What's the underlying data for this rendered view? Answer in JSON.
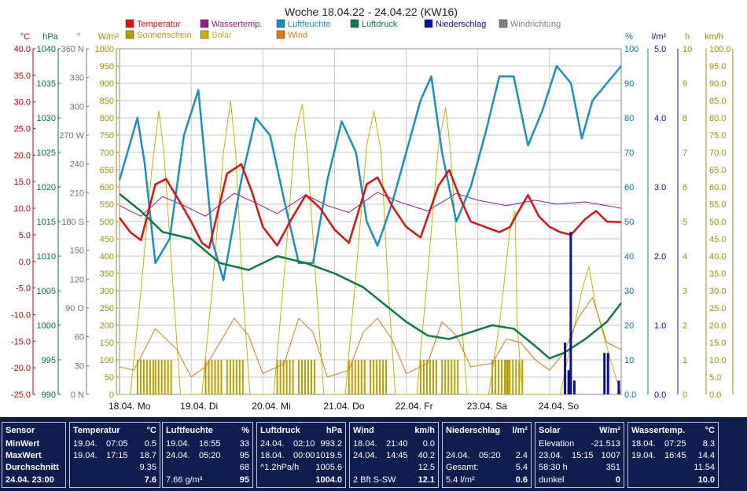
{
  "chart_data": {
    "type": "line",
    "title": "Woche 18.04.22 - 24.04.22 (KW16)",
    "x_labels": [
      "18.04. Mo",
      "19.04. Di",
      "20.04. Mi",
      "21.04. Do",
      "22.04. Fr",
      "23.04. Sa",
      "24.04. So"
    ],
    "legend": [
      {
        "name": "Temperatur",
        "color": "#dd1111"
      },
      {
        "name": "Wassertemp.",
        "color": "#9b1a8a"
      },
      {
        "name": "Luftfeuchte",
        "color": "#1a8fc1"
      },
      {
        "name": "Luftdruck",
        "color": "#0f7a45"
      },
      {
        "name": "Niederschlag",
        "color": "#0a10a0"
      },
      {
        "name": "Windrichtung",
        "color": "#808080"
      },
      {
        "name": "Sonnenschein",
        "color": "#b9a000"
      },
      {
        "name": "Solar",
        "color": "#c8b400"
      },
      {
        "name": "Wind",
        "color": "#dd7a10"
      }
    ],
    "axes": {
      "temp": {
        "unit": "°C",
        "ticks": [
          "40.0",
          "35.0",
          "30.0",
          "25.0",
          "20.0",
          "15.0",
          "10.0",
          "5.0",
          "0.0",
          "-5.0",
          "-10.0",
          "-15.0",
          "-20.0",
          "-25.0"
        ],
        "color": "#cc0000"
      },
      "pressure": {
        "unit": "hPa",
        "ticks": [
          "1040",
          "1035",
          "1030",
          "1025",
          "1020",
          "1015",
          "1010",
          "1005",
          "1000",
          "995",
          "990"
        ],
        "color": "#007050"
      },
      "direction": {
        "unit": "°",
        "ticks": [
          "360 N",
          "330",
          "300",
          "270 W",
          "240",
          "210",
          "180 S",
          "150",
          "120",
          "90 O",
          "60",
          "30",
          "0 N"
        ],
        "color": "#707070"
      },
      "solar": {
        "unit": "W/m²",
        "ticks": [
          "1000",
          "950",
          "900",
          "850",
          "800",
          "750",
          "700",
          "650",
          "600",
          "550",
          "500",
          "450",
          "400",
          "350",
          "300",
          "250",
          "200",
          "150",
          "100",
          "50",
          "0"
        ],
        "color": "#a09000"
      },
      "humidity": {
        "unit": "%",
        "ticks": [
          "100",
          "90",
          "80",
          "70",
          "60",
          "50",
          "40",
          "30",
          "20",
          "10",
          "0.0"
        ],
        "color": "#0070b0"
      },
      "rain": {
        "unit": "l/m²",
        "ticks": [
          "5.0",
          "4.0",
          "3.0",
          "2.0",
          "1.0",
          "0.0"
        ],
        "color": "#0a10a0"
      },
      "sunhours": {
        "unit": "h",
        "ticks": [
          "10",
          "9",
          "8",
          "7",
          "6",
          "5",
          "4",
          "3",
          "2",
          "1",
          "0"
        ],
        "color": "#a09000"
      },
      "wind": {
        "unit": "km/h",
        "ticks": [
          "100.0",
          "95.0",
          "90.0",
          "85.0",
          "80.0",
          "75.0",
          "70.0",
          "65.0",
          "60.0",
          "55.0",
          "50.0",
          "45.0",
          "40.0",
          "35.0",
          "30.0",
          "25.0",
          "20.0",
          "15.0",
          "10.0",
          "5.0",
          "0.0"
        ],
        "color": "#a09000"
      }
    },
    "temperature_C": [
      [
        0,
        8.2
      ],
      [
        0.15,
        5.5
      ],
      [
        0.3,
        4
      ],
      [
        0.5,
        14.5
      ],
      [
        0.65,
        15.5
      ],
      [
        0.85,
        11
      ],
      [
        1.0,
        7.5
      ],
      [
        1.15,
        3.5
      ],
      [
        1.25,
        2.5
      ],
      [
        1.5,
        16.5
      ],
      [
        1.7,
        18.3
      ],
      [
        1.85,
        13
      ],
      [
        2.0,
        6.5
      ],
      [
        2.2,
        3.0
      ],
      [
        2.4,
        8
      ],
      [
        2.6,
        12.5
      ],
      [
        2.8,
        10
      ],
      [
        3.0,
        6
      ],
      [
        3.2,
        3.5
      ],
      [
        3.45,
        14.5
      ],
      [
        3.6,
        15.8
      ],
      [
        3.8,
        10.5
      ],
      [
        4.0,
        6.5
      ],
      [
        4.2,
        4.5
      ],
      [
        4.45,
        14.2
      ],
      [
        4.6,
        17.2
      ],
      [
        4.75,
        12
      ],
      [
        4.9,
        7.5
      ],
      [
        5.1,
        6.5
      ],
      [
        5.3,
        5.5
      ],
      [
        5.45,
        6.5
      ],
      [
        5.55,
        9
      ],
      [
        5.7,
        12.5
      ],
      [
        5.85,
        8.5
      ],
      [
        6.0,
        6.5
      ],
      [
        6.15,
        5.5
      ],
      [
        6.3,
        5
      ],
      [
        6.5,
        8
      ],
      [
        6.65,
        9.5
      ],
      [
        6.8,
        7.5
      ],
      [
        7.0,
        7.4
      ]
    ],
    "water_temp_C": [
      [
        0,
        10.5
      ],
      [
        0.3,
        8.5
      ],
      [
        0.6,
        12.2
      ],
      [
        0.9,
        10.5
      ],
      [
        1.2,
        8.5
      ],
      [
        1.6,
        12.8
      ],
      [
        1.9,
        11
      ],
      [
        2.2,
        9
      ],
      [
        2.6,
        12.5
      ],
      [
        2.9,
        10.5
      ],
      [
        3.2,
        9.2
      ],
      [
        3.6,
        13
      ],
      [
        3.9,
        11.2
      ],
      [
        4.3,
        9.5
      ],
      [
        4.7,
        12.8
      ],
      [
        5.0,
        11.5
      ],
      [
        5.4,
        10.5
      ],
      [
        5.8,
        11.5
      ],
      [
        6.1,
        10.8
      ],
      [
        6.5,
        11.2
      ],
      [
        7.0,
        10.0
      ]
    ],
    "humidity_pct": [
      [
        0,
        62
      ],
      [
        0.25,
        80
      ],
      [
        0.35,
        67
      ],
      [
        0.5,
        38
      ],
      [
        0.7,
        45
      ],
      [
        0.9,
        75
      ],
      [
        1.1,
        88
      ],
      [
        1.3,
        44
      ],
      [
        1.45,
        33
      ],
      [
        1.7,
        62
      ],
      [
        1.9,
        80
      ],
      [
        2.1,
        75
      ],
      [
        2.3,
        56
      ],
      [
        2.5,
        38
      ],
      [
        2.7,
        38
      ],
      [
        2.9,
        62
      ],
      [
        3.1,
        79
      ],
      [
        3.3,
        70
      ],
      [
        3.45,
        50
      ],
      [
        3.6,
        43
      ],
      [
        3.8,
        55
      ],
      [
        4.0,
        70
      ],
      [
        4.2,
        85
      ],
      [
        4.35,
        92
      ],
      [
        4.5,
        70
      ],
      [
        4.7,
        50
      ],
      [
        4.9,
        60
      ],
      [
        5.1,
        75
      ],
      [
        5.3,
        92
      ],
      [
        5.5,
        92
      ],
      [
        5.7,
        72
      ],
      [
        5.9,
        82
      ],
      [
        6.1,
        95
      ],
      [
        6.3,
        90
      ],
      [
        6.45,
        74
      ],
      [
        6.6,
        85
      ],
      [
        6.8,
        90
      ],
      [
        7.0,
        95
      ]
    ],
    "pressure_hPa": [
      [
        0,
        1019
      ],
      [
        0.3,
        1016.5
      ],
      [
        0.6,
        1013.5
      ],
      [
        1.0,
        1012.5
      ],
      [
        1.4,
        1009
      ],
      [
        1.8,
        1008
      ],
      [
        2.2,
        1010
      ],
      [
        2.6,
        1009
      ],
      [
        3.0,
        1007.5
      ],
      [
        3.4,
        1005.5
      ],
      [
        3.7,
        1003
      ],
      [
        4.0,
        1000.5
      ],
      [
        4.3,
        998.5
      ],
      [
        4.6,
        998
      ],
      [
        4.9,
        999
      ],
      [
        5.2,
        1000
      ],
      [
        5.5,
        999.5
      ],
      [
        5.8,
        997
      ],
      [
        6.0,
        995.2
      ],
      [
        6.2,
        996
      ],
      [
        6.5,
        998
      ],
      [
        6.8,
        1000.5
      ],
      [
        7.0,
        1003.2
      ]
    ],
    "solar_Wm2": [
      [
        0,
        0
      ],
      [
        0.15,
        0
      ],
      [
        0.3,
        300
      ],
      [
        0.45,
        650
      ],
      [
        0.55,
        820
      ],
      [
        0.62,
        700
      ],
      [
        0.75,
        300
      ],
      [
        0.85,
        0
      ],
      [
        1.15,
        0
      ],
      [
        1.3,
        320
      ],
      [
        1.45,
        700
      ],
      [
        1.55,
        850
      ],
      [
        1.62,
        700
      ],
      [
        1.72,
        300
      ],
      [
        1.82,
        0
      ],
      [
        2.15,
        0
      ],
      [
        2.3,
        350
      ],
      [
        2.45,
        750
      ],
      [
        2.55,
        840
      ],
      [
        2.62,
        700
      ],
      [
        2.75,
        300
      ],
      [
        2.85,
        0
      ],
      [
        3.15,
        0
      ],
      [
        3.3,
        350
      ],
      [
        3.45,
        720
      ],
      [
        3.55,
        820
      ],
      [
        3.65,
        700
      ],
      [
        3.75,
        300
      ],
      [
        3.85,
        0
      ],
      [
        4.15,
        0
      ],
      [
        4.3,
        350
      ],
      [
        4.45,
        720
      ],
      [
        4.55,
        830
      ],
      [
        4.62,
        700
      ],
      [
        4.75,
        280
      ],
      [
        4.85,
        0
      ],
      [
        5.15,
        0
      ],
      [
        5.3,
        200
      ],
      [
        5.45,
        480
      ],
      [
        5.52,
        530
      ],
      [
        5.55,
        200
      ],
      [
        5.62,
        0
      ],
      [
        6.15,
        0
      ],
      [
        6.3,
        150
      ],
      [
        6.45,
        300
      ],
      [
        6.55,
        370
      ],
      [
        6.65,
        250
      ],
      [
        6.85,
        100
      ],
      [
        7.0,
        0
      ]
    ],
    "wind_kmh": [
      [
        0,
        8
      ],
      [
        0.2,
        7
      ],
      [
        0.5,
        19
      ],
      [
        0.8,
        13
      ],
      [
        1.0,
        5
      ],
      [
        1.2,
        8
      ],
      [
        1.4,
        15
      ],
      [
        1.6,
        22
      ],
      [
        1.8,
        17
      ],
      [
        2.0,
        6
      ],
      [
        2.3,
        9
      ],
      [
        2.5,
        22
      ],
      [
        2.7,
        18
      ],
      [
        2.9,
        5
      ],
      [
        3.2,
        7
      ],
      [
        3.4,
        18
      ],
      [
        3.6,
        22
      ],
      [
        3.8,
        16
      ],
      [
        4.0,
        6
      ],
      [
        4.3,
        9
      ],
      [
        4.5,
        21
      ],
      [
        4.7,
        17
      ],
      [
        4.9,
        8
      ],
      [
        5.2,
        9
      ],
      [
        5.4,
        16
      ],
      [
        5.6,
        15
      ],
      [
        5.8,
        10
      ],
      [
        6.0,
        7
      ],
      [
        6.2,
        12
      ],
      [
        6.4,
        22
      ],
      [
        6.6,
        28
      ],
      [
        6.8,
        15
      ],
      [
        7.0,
        13
      ]
    ],
    "rain_mm": [
      [
        6.2,
        0.75
      ],
      [
        6.25,
        0.35
      ],
      [
        6.28,
        2.35
      ],
      [
        6.33,
        0.2
      ],
      [
        6.75,
        0.6
      ],
      [
        6.8,
        0.6
      ],
      [
        6.95,
        0.2
      ]
    ],
    "sunshine_bars_x": [
      0.35,
      0.6,
      1.3,
      1.6,
      2.3,
      2.6,
      3.3,
      3.6,
      4.3,
      4.6,
      5.3,
      5.5
    ]
  },
  "table": {
    "columns": [
      {
        "header": "Sensor",
        "unit": "",
        "rows": [
          [
            "MinWert",
            "",
            ""
          ],
          [
            "MaxWert",
            "",
            ""
          ],
          [
            "Durchschnitt",
            "",
            ""
          ],
          [
            "24.04. 23:00",
            "",
            ""
          ]
        ]
      },
      {
        "header": "Temperatur",
        "unit": "°C",
        "rows": [
          [
            "19.04.",
            "07:05",
            "0.5"
          ],
          [
            "19.04.",
            "17:15",
            "18.7"
          ],
          [
            "",
            "",
            "9.35"
          ],
          [
            "",
            "",
            "7.6"
          ]
        ]
      },
      {
        "header": "Luftfeuchte",
        "unit": "%",
        "rows": [
          [
            "19.04.",
            "16:55",
            "33"
          ],
          [
            "24.04.",
            "05:20",
            "95"
          ],
          [
            "",
            "",
            "68"
          ],
          [
            "7.66 g/m³",
            "",
            "95"
          ]
        ]
      },
      {
        "header": "Luftdruck",
        "unit": "hPa",
        "rows": [
          [
            "24.04.",
            "02:10",
            "993.2"
          ],
          [
            "18.04.",
            "00:00",
            "1019.5"
          ],
          [
            "^1.2hPa/h",
            "",
            "1005.6"
          ],
          [
            "",
            "",
            "1004.0"
          ]
        ]
      },
      {
        "header": "Wind",
        "unit": "km/h",
        "rows": [
          [
            "18.04.",
            "21:40",
            "0.0"
          ],
          [
            "24.04.",
            "14:45",
            "40.2"
          ],
          [
            "",
            "",
            "12.5"
          ],
          [
            "2 Bft S-SW",
            "",
            "12.1"
          ]
        ]
      },
      {
        "header": "Niederschlag",
        "unit": "l/m²",
        "rows": [
          [
            "",
            "",
            ""
          ],
          [
            "24.04.",
            "05:20",
            "2.4"
          ],
          [
            "Gesamt:",
            "",
            "5.4"
          ],
          [
            "5.4 l/m²",
            "",
            "0.6"
          ]
        ]
      },
      {
        "header": "Solar",
        "unit": "W/m²",
        "rows": [
          [
            "Elevation",
            "",
            "-21.513"
          ],
          [
            "23.04.",
            "15:15",
            "1007"
          ],
          [
            "58:30 h",
            "",
            "351"
          ],
          [
            "dunkel",
            "",
            "0"
          ]
        ]
      },
      {
        "header": "Wassertemp.",
        "unit": "°C",
        "rows": [
          [
            "18.04.",
            "07:25",
            "8.3"
          ],
          [
            "19.04.",
            "16:45",
            "14.4"
          ],
          [
            "",
            "",
            "11.54"
          ],
          [
            "",
            "",
            "10.0"
          ]
        ]
      }
    ]
  }
}
